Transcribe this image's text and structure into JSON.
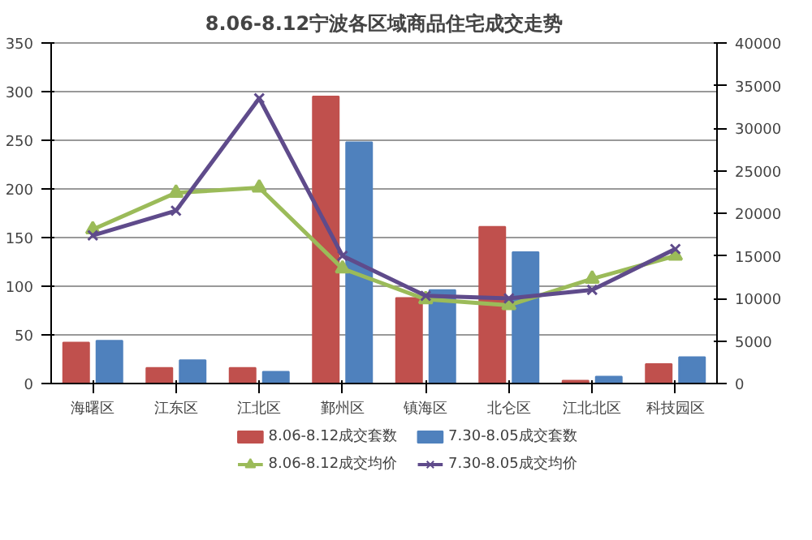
{
  "chart_data": {
    "type": "bar",
    "title": "8.06-8.12宁波各区域商品住宅成交走势",
    "categories": [
      "海曙区",
      "江东区",
      "江北区",
      "鄞州区",
      "镇海区",
      "北仑区",
      "江北北区",
      "科技园区"
    ],
    "series": [
      {
        "name": "8.06-8.12成交套数",
        "color": "#c0504d",
        "values": [
          42,
          16,
          16,
          295,
          88,
          161,
          3,
          20
        ]
      },
      {
        "name": "7.30-8.05成交套数",
        "color": "#4f81bd",
        "values": [
          44,
          24,
          12,
          248,
          96,
          135,
          7,
          27
        ]
      },
      {
        "name": "8.06-8.12成交均价",
        "type": "line",
        "axis": "y2",
        "marker": "triangle",
        "color": "#9bbb59",
        "values": [
          18100,
          22400,
          23000,
          13500,
          9900,
          9200,
          12300,
          15000
        ]
      },
      {
        "name": "7.30-8.05成交均价",
        "type": "line",
        "axis": "y2",
        "marker": "cross",
        "color": "#5f4b8b",
        "values": [
          17400,
          20300,
          33500,
          15000,
          10300,
          10000,
          11000,
          15800
        ]
      }
    ],
    "ylim": [
      0,
      350
    ],
    "yticks": [
      0,
      50,
      100,
      150,
      200,
      250,
      300,
      350
    ],
    "y2lim": [
      0,
      40000
    ],
    "y2ticks": [
      0,
      5000,
      10000,
      15000,
      20000,
      25000,
      30000,
      35000,
      40000
    ],
    "grid": "y",
    "legend": "bottom"
  }
}
